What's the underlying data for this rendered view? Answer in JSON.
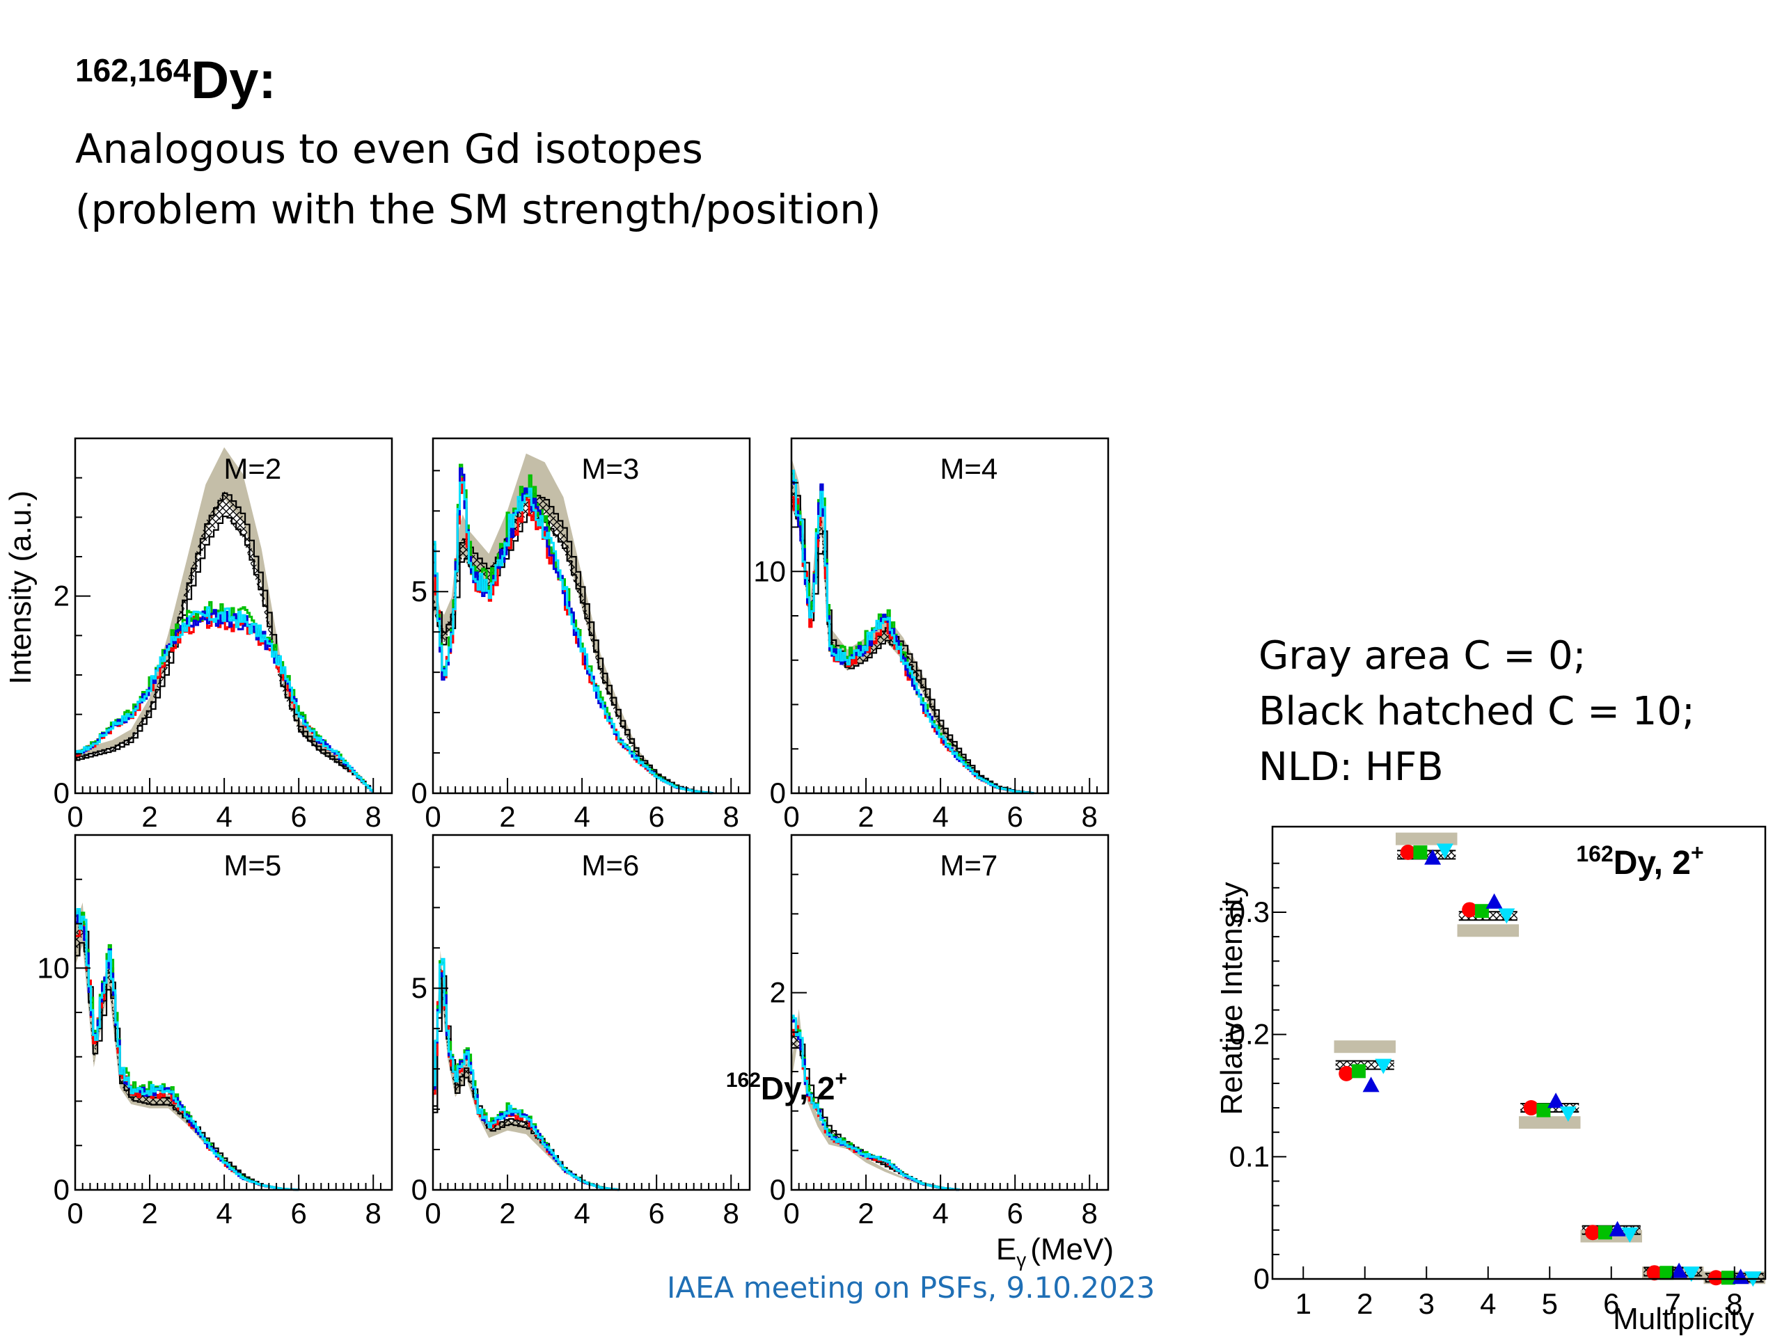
{
  "slide": {
    "title_super": "162,164",
    "title_main": "Dy:",
    "subtitle_line1": "Analogous to even Gd isotopes",
    "subtitle_line2": "(problem with the SM strength/position)",
    "legend_line1": "Gray area C = 0;",
    "legend_line2": "Black hatched C = 10;",
    "legend_line3": "NLD: HFB",
    "footer": "IAEA meeting on PSFs, 9.10.2023"
  },
  "colors": {
    "gray_band": "#c4bea8",
    "black": "#000000",
    "red": "#ff0000",
    "green": "#00c000",
    "blue": "#0000dd",
    "cyan": "#00e0ff",
    "footer": "#1f6fb5"
  },
  "chart_data": [
    {
      "type": "line",
      "panel": "M=2",
      "ylabel": "Intensity (a.u.)",
      "xlim": [
        0,
        8.5
      ],
      "ylim": [
        0,
        3.6
      ],
      "xticks": [
        0,
        2,
        4,
        6,
        8
      ],
      "yticks": [
        0,
        2
      ],
      "x": [
        0,
        0.5,
        1,
        1.5,
        2,
        2.5,
        3,
        3.5,
        4,
        4.5,
        5,
        5.5,
        6,
        6.5,
        7,
        7.5,
        8
      ],
      "series": [
        {
          "style": "gray-band",
          "values": [
            0.4,
            0.45,
            0.5,
            0.6,
            0.9,
            1.5,
            2.2,
            2.9,
            3.25,
            3.0,
            2.3,
            1.3,
            0.7,
            0.5,
            0.35,
            0.2,
            0.0
          ]
        },
        {
          "style": "black-hatched",
          "values": [
            0.35,
            0.4,
            0.45,
            0.55,
            0.85,
            1.35,
            2.05,
            2.65,
            2.95,
            2.7,
            2.05,
            1.15,
            0.65,
            0.45,
            0.32,
            0.18,
            0.0
          ]
        },
        {
          "style": "colored",
          "values": [
            0.4,
            0.5,
            0.7,
            0.8,
            1.1,
            1.5,
            1.75,
            1.8,
            1.8,
            1.75,
            1.6,
            1.3,
            0.8,
            0.55,
            0.4,
            0.2,
            0.0
          ]
        }
      ]
    },
    {
      "type": "line",
      "panel": "M=3",
      "xlim": [
        0,
        8.5
      ],
      "ylim": [
        0,
        8.8
      ],
      "xticks": [
        0,
        2,
        4,
        6,
        8
      ],
      "yticks": [
        0,
        5
      ],
      "x": [
        0,
        0.25,
        0.5,
        0.75,
        1,
        1.5,
        2,
        2.5,
        3,
        3.5,
        4,
        4.5,
        5,
        5.5,
        6,
        6.5,
        7,
        7.5
      ],
      "series": [
        {
          "style": "gray-band",
          "values": [
            5.0,
            4.0,
            4.5,
            6.5,
            6.0,
            5.5,
            6.5,
            7.8,
            7.6,
            6.8,
            5.0,
            3.2,
            2.0,
            1.0,
            0.5,
            0.2,
            0.05,
            0.0
          ]
        },
        {
          "style": "black-hatched",
          "values": [
            4.8,
            3.8,
            4.3,
            6.2,
            5.8,
            5.3,
            6.2,
            7.2,
            7.0,
            6.3,
            4.8,
            3.0,
            1.8,
            0.9,
            0.45,
            0.18,
            0.05,
            0.0
          ]
        },
        {
          "style": "colored",
          "values": [
            6.0,
            2.8,
            4.0,
            8.3,
            5.5,
            5.0,
            6.5,
            7.5,
            6.5,
            5.0,
            3.5,
            2.2,
            1.3,
            0.8,
            0.4,
            0.15,
            0.05,
            0.0
          ]
        }
      ]
    },
    {
      "type": "line",
      "panel": "M=4",
      "xlim": [
        0,
        8.5
      ],
      "ylim": [
        0,
        16
      ],
      "xticks": [
        0,
        2,
        4,
        6,
        8
      ],
      "yticks": [
        0,
        10
      ],
      "x": [
        0,
        0.2,
        0.5,
        0.8,
        1,
        1.5,
        2,
        2.5,
        3,
        3.5,
        4,
        4.5,
        5,
        5.5,
        6,
        6.5
      ],
      "series": [
        {
          "style": "gray-band",
          "values": [
            14,
            13,
            8,
            13,
            7,
            6,
            6.5,
            7.5,
            6.5,
            5.0,
            3.0,
            1.8,
            0.8,
            0.3,
            0.1,
            0.0
          ]
        },
        {
          "style": "black-hatched",
          "values": [
            13.5,
            12.5,
            7.8,
            12.5,
            6.8,
            5.8,
            6.3,
            7.2,
            6.4,
            4.9,
            3.0,
            1.8,
            0.8,
            0.3,
            0.1,
            0.0
          ]
        },
        {
          "style": "colored",
          "values": [
            14,
            12.5,
            7.5,
            14.5,
            6.5,
            6.0,
            6.8,
            8.0,
            6.0,
            4.0,
            2.5,
            1.5,
            0.7,
            0.25,
            0.08,
            0.0
          ]
        }
      ]
    },
    {
      "type": "line",
      "panel": "M=5",
      "xlim": [
        0,
        8.5
      ],
      "ylim": [
        0,
        16
      ],
      "xticks": [
        0,
        2,
        4,
        6,
        8
      ],
      "yticks": [
        0,
        10
      ],
      "x": [
        0,
        0.2,
        0.5,
        0.9,
        1.2,
        1.5,
        2,
        2.5,
        3,
        3.5,
        4,
        4.5,
        5,
        5.5,
        6
      ],
      "series": [
        {
          "style": "gray-band",
          "values": [
            11,
            12,
            6,
            10,
            5,
            4.2,
            4.0,
            4.0,
            3.2,
            2.2,
            1.3,
            0.6,
            0.2,
            0.05,
            0.0
          ]
        },
        {
          "style": "black-hatched",
          "values": [
            11,
            12,
            6,
            10,
            5,
            4.2,
            4.0,
            4.0,
            3.2,
            2.2,
            1.3,
            0.6,
            0.2,
            0.05,
            0.0
          ]
        },
        {
          "style": "colored",
          "values": [
            12,
            12.5,
            6.5,
            11,
            5.5,
            4.5,
            4.5,
            4.5,
            3.3,
            2.1,
            1.2,
            0.5,
            0.2,
            0.05,
            0.0
          ]
        }
      ]
    },
    {
      "type": "line",
      "panel": "M=6",
      "xlim": [
        0,
        8.5
      ],
      "ylim": [
        0,
        8.8
      ],
      "xticks": [
        0,
        2,
        4,
        6,
        8
      ],
      "yticks": [
        0,
        5
      ],
      "x": [
        0,
        0.2,
        0.4,
        0.6,
        0.9,
        1.2,
        1.5,
        2,
        2.5,
        3,
        3.5,
        4,
        4.5,
        5
      ],
      "series": [
        {
          "style": "gray-band",
          "values": [
            2,
            5.5,
            3.5,
            2.5,
            3.0,
            2.0,
            1.4,
            1.6,
            1.5,
            1.0,
            0.5,
            0.2,
            0.05,
            0.0
          ]
        },
        {
          "style": "black-hatched",
          "values": [
            2,
            5.5,
            3.5,
            2.5,
            3.0,
            2.0,
            1.5,
            1.7,
            1.6,
            1.1,
            0.5,
            0.2,
            0.05,
            0.0
          ]
        },
        {
          "style": "colored",
          "values": [
            2.5,
            6.0,
            3.5,
            2.8,
            3.5,
            2.0,
            1.6,
            2.0,
            1.8,
            1.1,
            0.5,
            0.2,
            0.05,
            0.0
          ]
        }
      ]
    },
    {
      "type": "line",
      "panel": "M=7",
      "annotation_super": "162",
      "annotation_main": "Dy, 2",
      "annotation_plus": "+",
      "xlabel_main": "E",
      "xlabel_sub": "γ",
      "xlabel_unit": "(MeV)",
      "xlim": [
        0,
        8.5
      ],
      "ylim": [
        0,
        3.6
      ],
      "xticks": [
        0,
        2,
        4,
        6,
        8
      ],
      "yticks": [
        0,
        2
      ],
      "x": [
        0,
        0.2,
        0.4,
        0.7,
        1,
        1.5,
        2,
        2.5,
        3,
        3.5,
        4,
        4.5
      ],
      "series": [
        {
          "style": "gray-band",
          "values": [
            1.2,
            1.7,
            1.0,
            0.7,
            0.5,
            0.45,
            0.3,
            0.2,
            0.12,
            0.05,
            0.02,
            0.0
          ]
        },
        {
          "style": "black-hatched",
          "values": [
            1.5,
            1.5,
            1.1,
            0.8,
            0.6,
            0.45,
            0.35,
            0.25,
            0.15,
            0.06,
            0.02,
            0.0
          ]
        },
        {
          "style": "colored",
          "values": [
            1.7,
            1.6,
            1.0,
            0.8,
            0.55,
            0.45,
            0.35,
            0.3,
            0.15,
            0.06,
            0.02,
            0.0
          ]
        }
      ]
    },
    {
      "type": "scatter",
      "panel": "relative-intensity",
      "xlabel": "Multiplicity",
      "ylabel": "Relative Intensity",
      "annotation_super": "162",
      "annotation_main": "Dy, 2",
      "annotation_plus": "+",
      "xlim": [
        0.5,
        8.5
      ],
      "ylim": [
        0,
        0.37
      ],
      "xticks": [
        1,
        2,
        3,
        4,
        5,
        6,
        7,
        8
      ],
      "yticks": [
        0,
        0.1,
        0.2,
        0.3
      ],
      "yticklabels": [
        "0",
        "0.1",
        "0.2",
        "0.3"
      ],
      "x": [
        2,
        3,
        4,
        5,
        6,
        7,
        8
      ],
      "gray_band": [
        0.19,
        0.36,
        0.285,
        0.128,
        0.035,
        0.005,
        0.001
      ],
      "black_hatched": [
        0.175,
        0.347,
        0.297,
        0.14,
        0.04,
        0.006,
        0.001
      ],
      "series": [
        {
          "marker": "circle",
          "color": "red",
          "values": [
            0.168,
            0.349,
            0.302,
            0.14,
            0.038,
            0.005,
            0.001
          ]
        },
        {
          "marker": "square",
          "color": "green",
          "values": [
            0.17,
            0.349,
            0.301,
            0.138,
            0.038,
            0.005,
            0.001
          ]
        },
        {
          "marker": "triangle-up",
          "color": "blue",
          "values": [
            0.158,
            0.344,
            0.308,
            0.145,
            0.04,
            0.006,
            0.001
          ]
        },
        {
          "marker": "triangle-down",
          "color": "cyan",
          "values": [
            0.175,
            0.351,
            0.298,
            0.136,
            0.037,
            0.005,
            0.001
          ]
        }
      ]
    }
  ]
}
